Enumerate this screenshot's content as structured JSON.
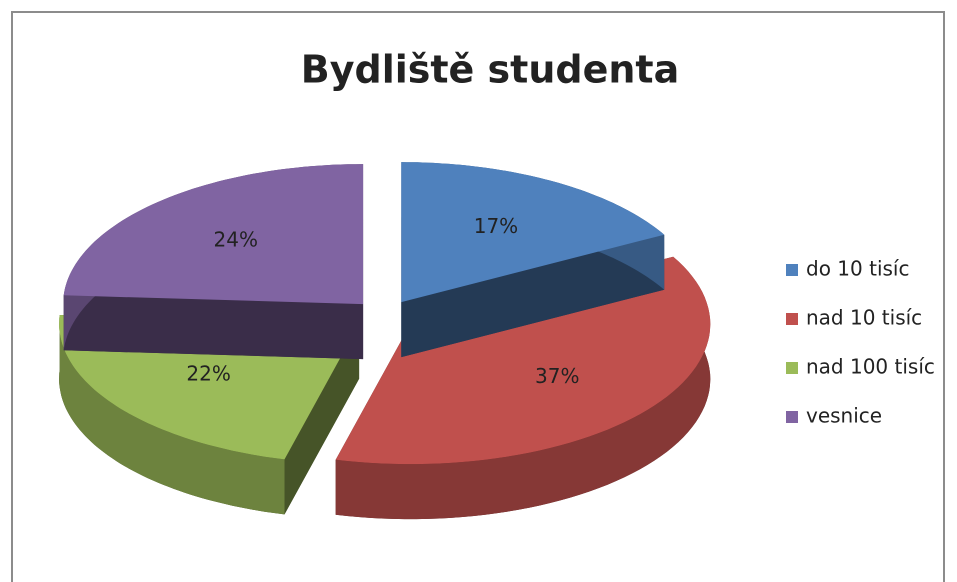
{
  "chart_data": {
    "type": "pie3d",
    "title": "Bydliště studenta",
    "categories": [
      "do 10 tisíc",
      "nad 10 tisíc",
      "nad 100 tisíc",
      "vesnice"
    ],
    "values": [
      17,
      37,
      22,
      24
    ],
    "value_labels": [
      "17%",
      "37%",
      "22%",
      "24%"
    ],
    "colors": [
      "#4f81bd",
      "#c0504d",
      "#9bbb59",
      "#8064a2"
    ],
    "legend": "right"
  }
}
